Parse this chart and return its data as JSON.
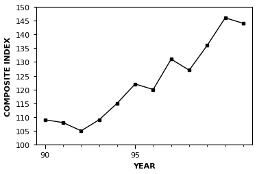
{
  "years": [
    0,
    1,
    2,
    3,
    4,
    5,
    6,
    7,
    8,
    9,
    10,
    11
  ],
  "values": [
    109,
    108,
    105,
    109,
    115,
    122,
    120,
    131,
    127,
    136,
    146,
    144
  ],
  "line_color": "#000000",
  "marker": "s",
  "marker_size": 3.5,
  "marker_facecolor": "#000000",
  "title": "",
  "xlabel": "YEAR",
  "ylabel": "COMPOSITE INDEX",
  "xlim": [
    -0.5,
    11.5
  ],
  "ylim": [
    100,
    150
  ],
  "xtick_positions": [
    0,
    5
  ],
  "xtick_labels": [
    "90",
    "95"
  ],
  "yticks": [
    100,
    105,
    110,
    115,
    120,
    125,
    130,
    135,
    140,
    145,
    150
  ],
  "background_color": "#ffffff",
  "tick_label_fontsize": 8,
  "axis_label_fontsize": 8
}
